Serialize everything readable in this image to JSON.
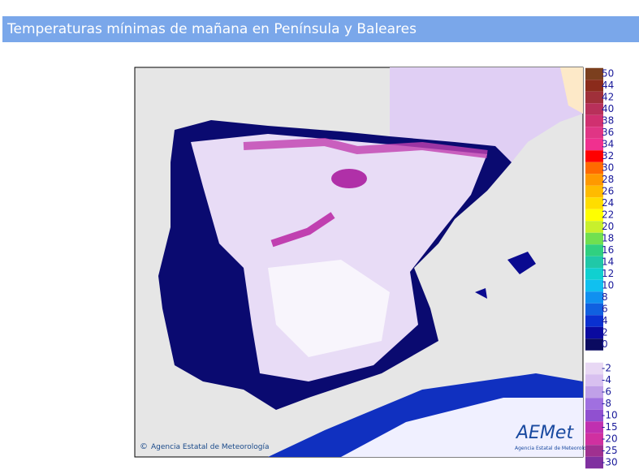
{
  "header": {
    "title": "Temperaturas mínimas de mañana en Península y Baleares"
  },
  "map": {
    "copyright": "Agencia Estatal de Meteorología",
    "logo": "AEMet",
    "logo_subtitle": "Agencia Estatal de Meteorología"
  },
  "legend": {
    "items": [
      {
        "label": "50",
        "color": "#7b3f1e"
      },
      {
        "label": "44",
        "color": "#8b2b1b"
      },
      {
        "label": "42",
        "color": "#a0303a"
      },
      {
        "label": "40",
        "color": "#b8305a"
      },
      {
        "label": "38",
        "color": "#d03070"
      },
      {
        "label": "36",
        "color": "#e03585"
      },
      {
        "label": "34",
        "color": "#f0308f"
      },
      {
        "label": "32",
        "color": "#ff0000"
      },
      {
        "label": "30",
        "color": "#ff6a00"
      },
      {
        "label": "28",
        "color": "#ff9900"
      },
      {
        "label": "26",
        "color": "#ffbb00"
      },
      {
        "label": "24",
        "color": "#ffdd00"
      },
      {
        "label": "22",
        "color": "#ffff00"
      },
      {
        "label": "20",
        "color": "#c8f02c"
      },
      {
        "label": "18",
        "color": "#70e050"
      },
      {
        "label": "16",
        "color": "#30d080"
      },
      {
        "label": "14",
        "color": "#20c8a8"
      },
      {
        "label": "12",
        "color": "#10d0d0"
      },
      {
        "label": "10",
        "color": "#10c0f0"
      },
      {
        "label": "8",
        "color": "#1090f0"
      },
      {
        "label": "6",
        "color": "#1060e0"
      },
      {
        "label": "4",
        "color": "#0a30d0"
      },
      {
        "label": "2",
        "color": "#0a0aa0"
      },
      {
        "label": "0",
        "color": "#0a0a60"
      },
      {
        "label": "-2",
        "color": "#e8d8f4"
      },
      {
        "label": "-4",
        "color": "#d8c0f0"
      },
      {
        "label": "-6",
        "color": "#c0a0e8"
      },
      {
        "label": "-8",
        "color": "#a070e0"
      },
      {
        "label": "-10",
        "color": "#9050d0"
      },
      {
        "label": "-15",
        "color": "#c030b0"
      },
      {
        "label": "-20",
        "color": "#d030a0"
      },
      {
        "label": "-25",
        "color": "#a03090"
      },
      {
        "label": "-30",
        "color": "#8030a0"
      }
    ]
  }
}
